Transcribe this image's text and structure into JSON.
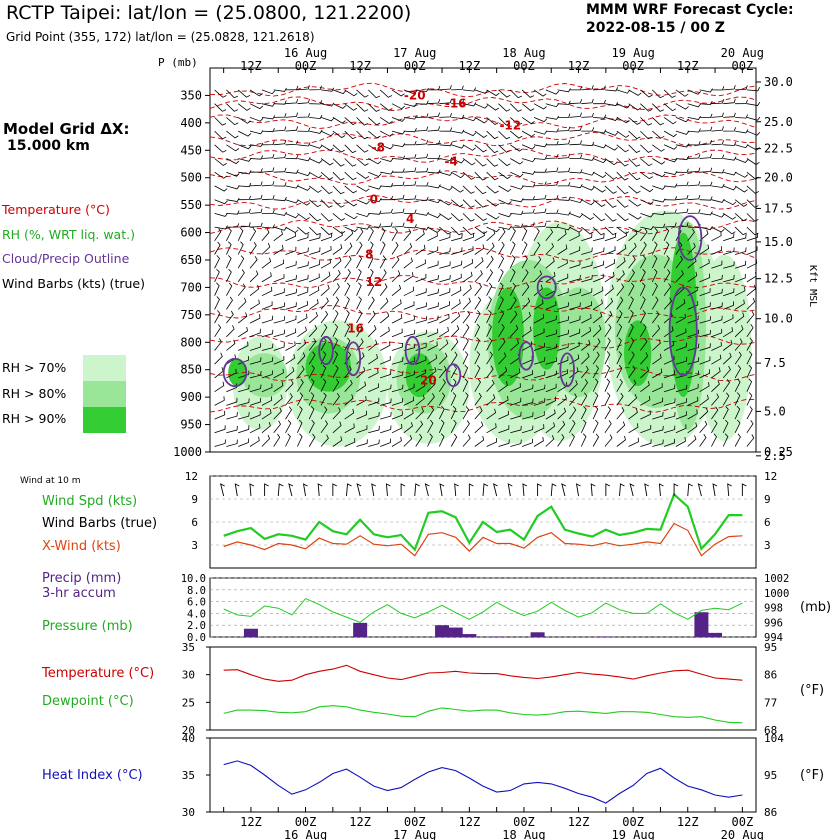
{
  "header": {
    "station": "RCTP Taipei:  lat/lon = (25.0800, 121.2200)",
    "grid_point": "Grid Point (355, 172) lat/lon = (25.0828, 121.2618)",
    "forecast_title": "MMM WRF Forecast Cycle:",
    "forecast_cycle": "2022-08-15 / 00  Z"
  },
  "time_axis": {
    "hours": [
      6,
      12,
      18,
      24,
      30,
      36,
      42,
      48,
      54,
      60,
      66,
      72,
      78,
      84,
      90,
      96,
      102,
      108,
      114,
      120
    ],
    "labels": [
      "",
      "12Z",
      "",
      "00Z",
      "",
      "12Z",
      "",
      "00Z",
      "",
      "12Z",
      "",
      "00Z",
      "",
      "12Z",
      "",
      "00Z",
      "",
      "12Z",
      "",
      "00Z"
    ],
    "dates": [
      {
        "hour": 24,
        "label": "16 Aug"
      },
      {
        "hour": 48,
        "label": "17 Aug"
      },
      {
        "hour": 72,
        "label": "18 Aug"
      },
      {
        "hour": 96,
        "label": "19 Aug"
      },
      {
        "hour": 120,
        "label": "20 Aug"
      }
    ]
  },
  "grid_note": {
    "label": "Model Grid ΔX:",
    "value": "15.000 km"
  },
  "legend": {
    "temperature": "Temperature (°C)",
    "rh": "RH (%, WRT liq. wat.)",
    "cloud": "Cloud/Precip Outline",
    "barbs": "Wind Barbs (kts) (true)",
    "rh70": "RH > 70%",
    "rh80": "RH > 80%",
    "rh90": "RH > 90%"
  },
  "colors": {
    "temp": "#cc0000",
    "rh70": "#ccf5cc",
    "rh80": "#99e699",
    "rh90": "#33cc33",
    "cloud": "#663399",
    "green_line": "#22cc22",
    "xwind": "#dd4411",
    "precip": "#552288",
    "heat": "#1111bb"
  },
  "chart_data": [
    {
      "type": "heatmap",
      "name": "upper-air",
      "ylabel": "P (mb)",
      "y2label": "Kft MSL",
      "pressure_ticks": [
        350,
        400,
        450,
        500,
        550,
        600,
        650,
        700,
        750,
        800,
        850,
        900,
        950,
        1000
      ],
      "height_ticks": [
        "30.0",
        "25.0",
        "22.5",
        "20.0",
        "17.5",
        "15.0",
        "12.5",
        "10.0",
        "7.5",
        "5.0",
        "2.5",
        "0.25"
      ],
      "height_tick_pressures": [
        300,
        398,
        447,
        500,
        556,
        617,
        684,
        757,
        838,
        926,
        1007,
        1000
      ],
      "temperature_labels": [
        {
          "hour": 48,
          "p": 350,
          "t": "-20"
        },
        {
          "hour": 57,
          "p": 365,
          "t": "-16"
        },
        {
          "hour": 69,
          "p": 405,
          "t": "-12"
        },
        {
          "hour": 40,
          "p": 445,
          "t": "-8"
        },
        {
          "hour": 56,
          "p": 470,
          "t": "-4"
        },
        {
          "hour": 39,
          "p": 540,
          "t": "0"
        },
        {
          "hour": 47,
          "p": 575,
          "t": "4"
        },
        {
          "hour": 38,
          "p": 640,
          "t": "8"
        },
        {
          "hour": 39,
          "p": 690,
          "t": "12"
        },
        {
          "hour": 35,
          "p": 775,
          "t": "16"
        },
        {
          "hour": 51,
          "p": 870,
          "t": "20"
        }
      ],
      "temperature_isotherms_p": [
        340,
        365,
        398,
        430,
        460,
        500,
        545,
        590,
        640,
        690,
        745,
        800,
        858,
        915
      ],
      "rh_regions": [
        {
          "level": 70,
          "blobs": [
            [
              8,
              20,
              790,
              960
            ],
            [
              20,
              42,
              760,
              990
            ],
            [
              42,
              60,
              780,
              985
            ],
            [
              60,
              80,
              700,
              985
            ],
            [
              70,
              90,
              580,
              980
            ],
            [
              90,
              116,
              560,
              990
            ],
            [
              110,
              122,
              640,
              980
            ]
          ]
        },
        {
          "level": 80,
          "blobs": [
            [
              10,
              20,
              820,
              900
            ],
            [
              22,
              36,
              790,
              930
            ],
            [
              44,
              56,
              800,
              930
            ],
            [
              64,
              82,
              650,
              940
            ],
            [
              78,
              90,
              700,
              900
            ],
            [
              92,
              110,
              640,
              920
            ],
            [
              104,
              112,
              580,
              960
            ]
          ]
        },
        {
          "level": 90,
          "blobs": [
            [
              7,
              11,
              830,
              880
            ],
            [
              24,
              34,
              800,
              890
            ],
            [
              46,
              52,
              820,
              900
            ],
            [
              65,
              72,
              700,
              880
            ],
            [
              74,
              80,
              700,
              850
            ],
            [
              94,
              100,
              760,
              880
            ],
            [
              104,
              110,
              600,
              900
            ]
          ]
        }
      ],
      "cloud_outlines": [
        [
          6,
          11,
          830,
          880
        ],
        [
          27,
          30,
          790,
          840
        ],
        [
          33,
          36,
          800,
          860
        ],
        [
          46,
          49,
          790,
          840
        ],
        [
          55,
          58,
          840,
          880
        ],
        [
          71,
          74,
          800,
          850
        ],
        [
          75,
          79,
          680,
          720
        ],
        [
          80,
          83,
          820,
          880
        ],
        [
          106,
          111,
          570,
          650
        ],
        [
          104,
          110,
          700,
          860
        ]
      ]
    },
    {
      "type": "line",
      "name": "surface-wind",
      "title": "Wind at 10 m",
      "yticks": [
        3,
        6,
        9,
        12
      ],
      "ylim": [
        0,
        12
      ],
      "series": [
        {
          "name": "Wind Spd (kts)",
          "x": [
            6,
            9,
            12,
            15,
            18,
            21,
            24,
            27,
            30,
            33,
            36,
            39,
            42,
            45,
            48,
            51,
            54,
            57,
            60,
            63,
            66,
            69,
            72,
            75,
            78,
            81,
            84,
            87,
            90,
            93,
            96,
            99,
            102,
            105,
            108,
            111,
            114,
            117,
            120
          ],
          "values": [
            4.2,
            4.8,
            5.2,
            3.8,
            4.4,
            4.2,
            3.7,
            6.0,
            4.8,
            4.4,
            6.3,
            4.4,
            4.0,
            4.3,
            2.4,
            7.2,
            7.4,
            6.6,
            3.3,
            6.0,
            4.7,
            5.0,
            3.7,
            6.8,
            8.0,
            5.0,
            4.5,
            4.1,
            5.0,
            4.3,
            4.6,
            5.1,
            5.0,
            9.6,
            8.0,
            2.5,
            4.4,
            6.9,
            6.9
          ]
        },
        {
          "name": "X-Wind (kts)",
          "x": [
            6,
            9,
            12,
            15,
            18,
            21,
            24,
            27,
            30,
            33,
            36,
            39,
            42,
            45,
            48,
            51,
            54,
            57,
            60,
            63,
            66,
            69,
            72,
            75,
            78,
            81,
            84,
            87,
            90,
            93,
            96,
            99,
            102,
            105,
            108,
            111,
            114,
            117,
            120
          ],
          "values": [
            2.8,
            3.4,
            3.0,
            2.4,
            3.2,
            3.0,
            2.5,
            3.9,
            3.2,
            3.1,
            4.2,
            3.1,
            2.9,
            3.1,
            1.6,
            4.4,
            4.6,
            4.0,
            2.2,
            4.0,
            3.2,
            3.2,
            2.6,
            4.0,
            4.6,
            3.2,
            3.1,
            2.9,
            3.3,
            2.9,
            3.1,
            3.4,
            3.2,
            5.8,
            4.9,
            1.6,
            3.1,
            4.1,
            4.2
          ]
        }
      ],
      "legend": [
        "Wind Spd (kts)",
        "Wind Barbs (true)",
        "X-Wind (kts)"
      ]
    },
    {
      "type": "bar",
      "name": "precip-pressure",
      "yticks_left": [
        "0.0",
        "2.0",
        "4.0",
        "6.0",
        "8.0",
        "10.0"
      ],
      "ylim_left": [
        0,
        10
      ],
      "yticks_right": [
        "994",
        "996",
        "998",
        "1000",
        "1002"
      ],
      "ylim_right": [
        994,
        1002
      ],
      "y2label": "(mb)",
      "precip_series": {
        "name": "Precip (mm) 3-hr accum",
        "x": [
          12,
          36,
          54,
          57,
          60,
          66,
          75,
          90,
          111,
          114
        ],
        "values": [
          1.4,
          2.4,
          2.0,
          1.6,
          0.5,
          0.1,
          0.8,
          0.1,
          4.2,
          0.7
        ]
      },
      "pressure_series": {
        "name": "Pressure (mb)",
        "x": [
          6,
          9,
          12,
          15,
          18,
          21,
          24,
          27,
          30,
          33,
          36,
          39,
          42,
          45,
          48,
          51,
          54,
          57,
          60,
          63,
          66,
          69,
          72,
          75,
          78,
          81,
          84,
          87,
          90,
          93,
          96,
          99,
          102,
          105,
          108,
          111,
          114,
          117,
          120
        ],
        "values": [
          997.8,
          997.0,
          996.8,
          998.2,
          997.9,
          997.0,
          999.2,
          998.4,
          997.4,
          996.7,
          996.0,
          997.4,
          998.4,
          997.2,
          996.6,
          997.4,
          998.3,
          997.3,
          996.4,
          997.4,
          998.7,
          997.7,
          996.9,
          997.5,
          998.7,
          997.6,
          996.7,
          997.3,
          998.6,
          997.7,
          997.2,
          997.2,
          998.5,
          997.3,
          996.4,
          997.6,
          997.9,
          997.7,
          998.6
        ]
      },
      "legend": [
        "Precip (mm)",
        "3-hr accum",
        "Pressure (mb)"
      ]
    },
    {
      "type": "line",
      "name": "temp-dew",
      "yticks_left": [
        20,
        25,
        30,
        35
      ],
      "ylim_left": [
        20,
        35
      ],
      "yticks_right": [
        68,
        77,
        86,
        95
      ],
      "y2label": "(°F)",
      "series": [
        {
          "name": "Temperature (°C)",
          "x": [
            6,
            9,
            12,
            15,
            18,
            21,
            24,
            27,
            30,
            33,
            36,
            39,
            42,
            45,
            48,
            51,
            54,
            57,
            60,
            63,
            66,
            69,
            72,
            75,
            78,
            81,
            84,
            87,
            90,
            93,
            96,
            99,
            102,
            105,
            108,
            111,
            114,
            117,
            120
          ],
          "values": [
            30.8,
            30.9,
            30.0,
            29.2,
            28.8,
            29.0,
            30.0,
            30.6,
            31.0,
            31.7,
            30.6,
            30.0,
            29.4,
            29.1,
            29.7,
            30.3,
            30.4,
            30.6,
            30.3,
            30.2,
            30.2,
            29.8,
            29.5,
            29.3,
            29.6,
            30.0,
            30.4,
            30.1,
            29.9,
            29.6,
            29.2,
            29.8,
            30.3,
            30.7,
            30.8,
            30.1,
            29.4,
            29.2,
            29.0
          ]
        },
        {
          "name": "Dewpoint (°C)",
          "x": [
            6,
            9,
            12,
            15,
            18,
            21,
            24,
            27,
            30,
            33,
            36,
            39,
            42,
            45,
            48,
            51,
            54,
            57,
            60,
            63,
            66,
            69,
            72,
            75,
            78,
            81,
            84,
            87,
            90,
            93,
            96,
            99,
            102,
            105,
            108,
            111,
            114,
            117,
            120
          ],
          "values": [
            23.0,
            23.6,
            23.6,
            23.5,
            23.2,
            23.1,
            23.3,
            24.2,
            24.4,
            24.2,
            23.6,
            23.2,
            22.9,
            22.5,
            22.4,
            23.4,
            24.0,
            23.7,
            23.4,
            23.6,
            23.6,
            23.1,
            22.8,
            22.7,
            22.9,
            23.3,
            23.4,
            23.2,
            23.0,
            23.3,
            23.3,
            23.2,
            22.8,
            22.4,
            22.3,
            22.4,
            21.8,
            21.4,
            21.3
          ]
        }
      ]
    },
    {
      "type": "line",
      "name": "heat-index",
      "yticks_left": [
        30,
        35,
        40
      ],
      "ylim_left": [
        30,
        40
      ],
      "yticks_right": [
        86,
        95,
        104
      ],
      "y2label": "(°F)",
      "series": [
        {
          "name": "Heat Index (°C)",
          "x": [
            6,
            9,
            12,
            15,
            18,
            21,
            24,
            27,
            30,
            33,
            36,
            39,
            42,
            45,
            48,
            51,
            54,
            57,
            60,
            63,
            66,
            69,
            72,
            75,
            78,
            81,
            84,
            87,
            90,
            93,
            96,
            99,
            102,
            105,
            108,
            111,
            114,
            117,
            120
          ],
          "values": [
            36.4,
            36.9,
            36.3,
            35.0,
            33.6,
            32.4,
            33.0,
            34.0,
            35.2,
            35.8,
            34.7,
            33.5,
            32.9,
            33.3,
            34.4,
            35.4,
            36.0,
            35.6,
            34.6,
            33.5,
            32.7,
            32.9,
            33.8,
            34.0,
            33.8,
            33.2,
            32.5,
            32.0,
            31.2,
            32.5,
            33.6,
            35.2,
            35.9,
            34.6,
            33.5,
            33.0,
            32.3,
            32.0,
            32.3
          ]
        }
      ]
    }
  ],
  "sidebar": {
    "wind10": "Wind at 10 m",
    "wind_spd": "Wind Spd (kts)",
    "wind_barbs": "Wind Barbs (true)",
    "xwind": "X-Wind (kts)",
    "precip": "Precip (mm)",
    "accum": "3-hr accum",
    "pressure": "Pressure (mb)",
    "temperature": "Temperature (°C)",
    "dewpoint": "Dewpoint (°C)",
    "heat": "Heat Index (°C)",
    "pmb": "P (mb)",
    "kft": "Kft MSL",
    "mb": "(mb)",
    "degf1": "(°F)",
    "degf2": "(°F)"
  }
}
